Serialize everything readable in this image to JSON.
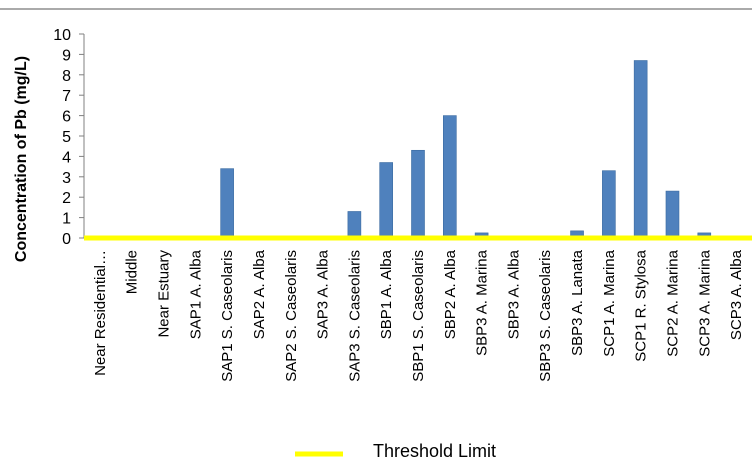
{
  "chart_data": {
    "type": "bar",
    "title": "",
    "xlabel": "",
    "ylabel": "Concentration of Pb (mg/L)",
    "ylim": [
      0,
      10
    ],
    "yticks": [
      0,
      1,
      2,
      3,
      4,
      5,
      6,
      7,
      8,
      9,
      10
    ],
    "grid": false,
    "categories": [
      "Near Residential…",
      "Middle",
      "Near Estuary",
      "SAP1 A. Alba",
      "SAP1 S. Caseolaris",
      "SAP2 A. Alba",
      "SAP2 S. Caseolaris",
      "SAP3 A. Alba",
      "SAP3 S. Caseolaris",
      "SBP1 A. Alba",
      "SBP1 S. Caseolaris",
      "SBP2 A. Alba",
      "SBP3 A. Marina",
      "SBP3 A. Alba",
      "SBP3 S. Caseolaris",
      "SBP3 A. Lanata",
      "SCP1 A. Marina",
      "SCP1 R. Stylosa",
      "SCP2 A. Marina",
      "SCP3 A. Marina",
      "SCP3 A. Alba"
    ],
    "series": [
      {
        "name": "",
        "color": "#4f81bd",
        "values": [
          0,
          0,
          0,
          0,
          3.4,
          0,
          0,
          0,
          1.3,
          3.7,
          4.3,
          6.0,
          0.25,
          0,
          0,
          0.35,
          3.3,
          8.7,
          2.3,
          0.25,
          0
        ]
      }
    ],
    "threshold": {
      "name": "Threshold Limit",
      "value": 0,
      "color": "#ffff00"
    },
    "legend": {
      "position": "bottom"
    }
  }
}
